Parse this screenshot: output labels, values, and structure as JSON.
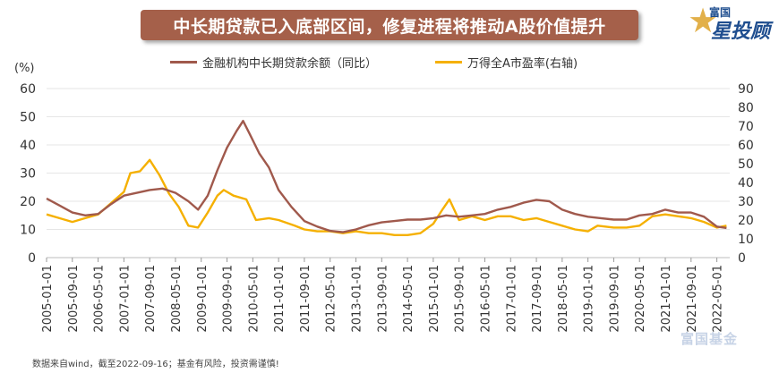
{
  "title": "中长期贷款已入底部区间，修复进程将推动A股价值提升",
  "brand": {
    "small": "富国",
    "big": "星投顾",
    "star_icon": "star-icon"
  },
  "footnote": "数据来自wind，截至2022-09-16；基金有风险，投资需谨慎!",
  "watermark": "富国基金",
  "colors": {
    "loan": "#a0594c",
    "pe": "#f5b000",
    "banner": "#a5604a",
    "grid": "#e6e6e6"
  },
  "chart_data": {
    "type": "line",
    "y_left_unit": "(%)",
    "y_left_ticks": [
      "0",
      "10",
      "20",
      "30",
      "40",
      "50",
      "60"
    ],
    "y_right_ticks": [
      "0",
      "10",
      "20",
      "30",
      "40",
      "50",
      "60",
      "70",
      "80",
      "90"
    ],
    "ylim_left": [
      0,
      60
    ],
    "ylim_right": [
      0,
      90
    ],
    "legend_position": "top-center",
    "grid": "horizontal",
    "x_tick_labels": [
      "2005-01-01",
      "2005-09-01",
      "2006-05-01",
      "2007-01-01",
      "2007-09-01",
      "2008-05-01",
      "2009-01-01",
      "2009-09-01",
      "2010-05-01",
      "2011-01-01",
      "2011-09-01",
      "2012-05-01",
      "2013-01-01",
      "2013-09-01",
      "2014-05-01",
      "2015-01-01",
      "2015-09-01",
      "2016-05-01",
      "2017-01-01",
      "2017-09-01",
      "2018-05-01",
      "2019-01-01",
      "2019-09-01",
      "2020-05-01",
      "2021-01-01",
      "2021-09-01",
      "2022-05-01"
    ],
    "series": [
      {
        "name": "金融机构中长期贷款余额（同比）",
        "axis": "left",
        "color": "#a0594c",
        "points": [
          [
            "2005-01",
            21
          ],
          [
            "2005-05",
            18.5
          ],
          [
            "2005-09",
            16
          ],
          [
            "2006-01",
            15
          ],
          [
            "2006-05",
            15.5
          ],
          [
            "2006-09",
            19
          ],
          [
            "2007-01",
            22
          ],
          [
            "2007-05",
            23
          ],
          [
            "2007-09",
            24
          ],
          [
            "2008-01",
            24.5
          ],
          [
            "2008-05",
            23
          ],
          [
            "2008-09",
            20
          ],
          [
            "2008-12",
            17
          ],
          [
            "2009-03",
            22
          ],
          [
            "2009-06",
            31
          ],
          [
            "2009-09",
            39
          ],
          [
            "2009-12",
            45
          ],
          [
            "2010-02",
            48.5
          ],
          [
            "2010-04",
            44
          ],
          [
            "2010-07",
            37
          ],
          [
            "2010-10",
            32
          ],
          [
            "2011-01",
            24
          ],
          [
            "2011-05",
            18
          ],
          [
            "2011-09",
            13
          ],
          [
            "2012-01",
            11
          ],
          [
            "2012-05",
            9.5
          ],
          [
            "2012-09",
            9
          ],
          [
            "2013-01",
            10
          ],
          [
            "2013-05",
            11.5
          ],
          [
            "2013-09",
            12.5
          ],
          [
            "2014-01",
            13
          ],
          [
            "2014-05",
            13.5
          ],
          [
            "2014-09",
            13.5
          ],
          [
            "2015-01",
            14
          ],
          [
            "2015-05",
            15
          ],
          [
            "2015-09",
            14.5
          ],
          [
            "2016-01",
            15
          ],
          [
            "2016-05",
            15.5
          ],
          [
            "2016-09",
            17
          ],
          [
            "2017-01",
            18
          ],
          [
            "2017-05",
            19.5
          ],
          [
            "2017-09",
            20.5
          ],
          [
            "2018-01",
            20
          ],
          [
            "2018-05",
            17
          ],
          [
            "2018-09",
            15.5
          ],
          [
            "2019-01",
            14.5
          ],
          [
            "2019-05",
            14
          ],
          [
            "2019-09",
            13.5
          ],
          [
            "2020-01",
            13.5
          ],
          [
            "2020-05",
            15
          ],
          [
            "2020-09",
            15.5
          ],
          [
            "2021-01",
            17
          ],
          [
            "2021-05",
            16
          ],
          [
            "2021-09",
            16
          ],
          [
            "2022-01",
            14.5
          ],
          [
            "2022-05",
            11
          ],
          [
            "2022-08",
            10.5
          ]
        ]
      },
      {
        "name": "万得全A市盈率(右轴)",
        "axis": "right",
        "color": "#f5b000",
        "points": [
          [
            "2005-01",
            23
          ],
          [
            "2005-05",
            21
          ],
          [
            "2005-09",
            19
          ],
          [
            "2006-01",
            21
          ],
          [
            "2006-05",
            23
          ],
          [
            "2006-09",
            29
          ],
          [
            "2007-01",
            35
          ],
          [
            "2007-03",
            45
          ],
          [
            "2007-06",
            46
          ],
          [
            "2007-09",
            52
          ],
          [
            "2007-12",
            44
          ],
          [
            "2008-03",
            34
          ],
          [
            "2008-06",
            27
          ],
          [
            "2008-09",
            17
          ],
          [
            "2008-12",
            16
          ],
          [
            "2009-03",
            24
          ],
          [
            "2009-06",
            33
          ],
          [
            "2009-08",
            36
          ],
          [
            "2009-11",
            33
          ],
          [
            "2010-03",
            31
          ],
          [
            "2010-06",
            20
          ],
          [
            "2010-10",
            21
          ],
          [
            "2011-01",
            20
          ],
          [
            "2011-06",
            17
          ],
          [
            "2011-09",
            15
          ],
          [
            "2012-01",
            14
          ],
          [
            "2012-05",
            14
          ],
          [
            "2012-09",
            13
          ],
          [
            "2013-01",
            14
          ],
          [
            "2013-05",
            13
          ],
          [
            "2013-09",
            13
          ],
          [
            "2014-01",
            12
          ],
          [
            "2014-05",
            12
          ],
          [
            "2014-09",
            13
          ],
          [
            "2015-01",
            18
          ],
          [
            "2015-04",
            26
          ],
          [
            "2015-06",
            31
          ],
          [
            "2015-09",
            20
          ],
          [
            "2016-01",
            22
          ],
          [
            "2016-05",
            20
          ],
          [
            "2016-09",
            22
          ],
          [
            "2017-01",
            22
          ],
          [
            "2017-05",
            20
          ],
          [
            "2017-09",
            21
          ],
          [
            "2018-01",
            19
          ],
          [
            "2018-05",
            17
          ],
          [
            "2018-09",
            15
          ],
          [
            "2019-01",
            14
          ],
          [
            "2019-04",
            17
          ],
          [
            "2019-09",
            16
          ],
          [
            "2020-01",
            16
          ],
          [
            "2020-05",
            17
          ],
          [
            "2020-09",
            22
          ],
          [
            "2021-01",
            23
          ],
          [
            "2021-05",
            22
          ],
          [
            "2021-09",
            21
          ],
          [
            "2022-01",
            19
          ],
          [
            "2022-05",
            16
          ],
          [
            "2022-08",
            17
          ]
        ]
      }
    ]
  }
}
